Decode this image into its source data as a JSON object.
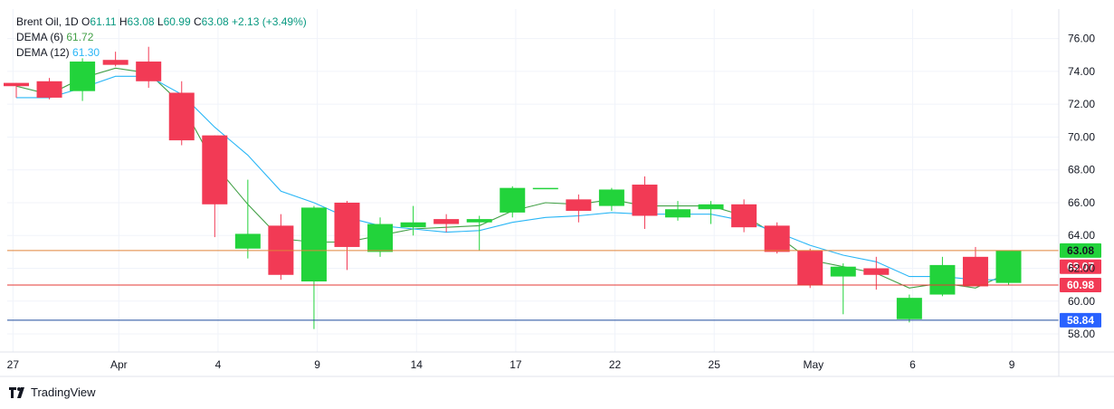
{
  "legend": {
    "symbol": "Brent Oil",
    "interval": "1D",
    "open_label": "O",
    "open": "61.11",
    "high_label": "H",
    "high": "63.08",
    "low_label": "L",
    "low": "60.99",
    "close_label": "C",
    "close": "63.08",
    "change": "+2.13 (+3.49%)",
    "dema6_label": "DEMA (6)",
    "dema6_value": "61.72",
    "dema12_label": "DEMA (12)",
    "dema12_value": "61.30"
  },
  "brand": {
    "name": "TradingView"
  },
  "colors": {
    "up": "#22d33b",
    "down": "#f23a55",
    "dema6": "#43a047",
    "dema12": "#29b6f6",
    "grid": "#f0f3fa",
    "line_last": "#e0843a",
    "line_red": "#e53935",
    "line_blue": "#1e4b9c"
  },
  "chart_data": {
    "type": "candlestick",
    "y_ticks": [
      "76.00",
      "74.00",
      "72.00",
      "70.00",
      "68.00",
      "66.00",
      "64.00",
      "62.00",
      "60.00",
      "58.00"
    ],
    "ylim": [
      56.9,
      77.8
    ],
    "x_tick_labels": [
      {
        "index": -0.1,
        "label": "27"
      },
      {
        "index": 3.1,
        "label": "Apr"
      },
      {
        "index": 6.1,
        "label": "4"
      },
      {
        "index": 9.1,
        "label": "9"
      },
      {
        "index": 12.1,
        "label": "14"
      },
      {
        "index": 15.1,
        "label": "17"
      },
      {
        "index": 18.1,
        "label": "22"
      },
      {
        "index": 21.1,
        "label": "25"
      },
      {
        "index": 24.1,
        "label": "May"
      },
      {
        "index": 27.1,
        "label": "6"
      },
      {
        "index": 30.1,
        "label": "9"
      }
    ],
    "candles": [
      {
        "o": 73.3,
        "h": 73.3,
        "l": 72.4,
        "c": 73.1
      },
      {
        "o": 73.4,
        "h": 73.6,
        "l": 72.3,
        "c": 72.4
      },
      {
        "o": 72.8,
        "h": 74.8,
        "l": 72.2,
        "c": 74.6
      },
      {
        "o": 74.7,
        "h": 75.2,
        "l": 74.3,
        "c": 74.4
      },
      {
        "o": 74.6,
        "h": 75.5,
        "l": 73.0,
        "c": 73.4
      },
      {
        "o": 72.7,
        "h": 73.4,
        "l": 69.5,
        "c": 69.8
      },
      {
        "o": 70.1,
        "h": 70.1,
        "l": 63.9,
        "c": 65.9
      },
      {
        "o": 63.2,
        "h": 67.4,
        "l": 62.6,
        "c": 64.1
      },
      {
        "o": 64.6,
        "h": 65.3,
        "l": 61.3,
        "c": 61.6
      },
      {
        "o": 61.2,
        "h": 65.8,
        "l": 58.3,
        "c": 65.7
      },
      {
        "o": 66.0,
        "h": 66.1,
        "l": 61.9,
        "c": 63.3
      },
      {
        "o": 63.0,
        "h": 65.1,
        "l": 62.7,
        "c": 64.7
      },
      {
        "o": 64.5,
        "h": 65.8,
        "l": 64.0,
        "c": 64.8
      },
      {
        "o": 65.0,
        "h": 65.3,
        "l": 64.2,
        "c": 64.7
      },
      {
        "o": 64.8,
        "h": 65.2,
        "l": 63.1,
        "c": 65.0
      },
      {
        "o": 65.4,
        "h": 67.0,
        "l": 65.1,
        "c": 66.9
      },
      {
        "o": 66.9,
        "h": 66.9,
        "l": 66.9,
        "c": 66.9
      },
      {
        "o": 66.2,
        "h": 66.5,
        "l": 64.8,
        "c": 65.5
      },
      {
        "o": 65.8,
        "h": 66.9,
        "l": 65.5,
        "c": 66.8
      },
      {
        "o": 67.1,
        "h": 67.6,
        "l": 64.4,
        "c": 65.2
      },
      {
        "o": 65.1,
        "h": 66.1,
        "l": 64.9,
        "c": 65.6
      },
      {
        "o": 65.6,
        "h": 66.1,
        "l": 64.7,
        "c": 65.9
      },
      {
        "o": 65.9,
        "h": 66.2,
        "l": 64.2,
        "c": 64.5
      },
      {
        "o": 64.6,
        "h": 64.8,
        "l": 62.9,
        "c": 63.0
      },
      {
        "o": 63.1,
        "h": 63.2,
        "l": 60.8,
        "c": 61.0
      },
      {
        "o": 61.5,
        "h": 62.3,
        "l": 59.2,
        "c": 62.1
      },
      {
        "o": 62.0,
        "h": 62.7,
        "l": 60.7,
        "c": 61.6
      },
      {
        "o": 58.9,
        "h": 60.4,
        "l": 58.7,
        "c": 60.2
      },
      {
        "o": 60.4,
        "h": 62.7,
        "l": 60.3,
        "c": 62.2
      },
      {
        "o": 62.7,
        "h": 63.3,
        "l": 60.9,
        "c": 60.9
      },
      {
        "o": 61.11,
        "h": 63.08,
        "l": 60.99,
        "c": 63.08
      }
    ],
    "series": [
      {
        "name": "DEMA (6)",
        "values": [
          73.1,
          72.6,
          73.6,
          74.2,
          73.9,
          72.0,
          68.3,
          65.9,
          63.8,
          63.6,
          63.6,
          64.0,
          64.4,
          64.5,
          64.6,
          65.5,
          66.0,
          65.9,
          66.2,
          65.8,
          65.8,
          65.8,
          65.2,
          64.0,
          62.5,
          62.1,
          61.7,
          60.8,
          61.1,
          60.8,
          61.72
        ]
      },
      {
        "name": "DEMA (12)",
        "values": [
          72.4,
          72.4,
          73.0,
          73.7,
          73.7,
          72.6,
          70.6,
          68.9,
          66.7,
          66.0,
          65.1,
          64.6,
          64.4,
          64.2,
          64.3,
          64.8,
          65.1,
          65.2,
          65.4,
          65.3,
          65.3,
          65.3,
          64.9,
          64.2,
          63.4,
          62.8,
          62.4,
          61.5,
          61.5,
          61.3,
          61.3
        ]
      }
    ],
    "price_lines": [
      {
        "label": "63.08",
        "value": 63.08,
        "color": "#e0843a",
        "badge_color": "#22d33b"
      },
      {
        "label": "63.07",
        "value": 62.1,
        "color": "#e0843a",
        "badge_color": "#f23a55",
        "line": false
      },
      {
        "label": "60.98",
        "value": 60.98,
        "color": "#e53935",
        "badge_color": "#f23a55"
      },
      {
        "label": "58.84",
        "value": 58.84,
        "color": "#1e4b9c",
        "badge_color": "#2962ff"
      }
    ]
  }
}
